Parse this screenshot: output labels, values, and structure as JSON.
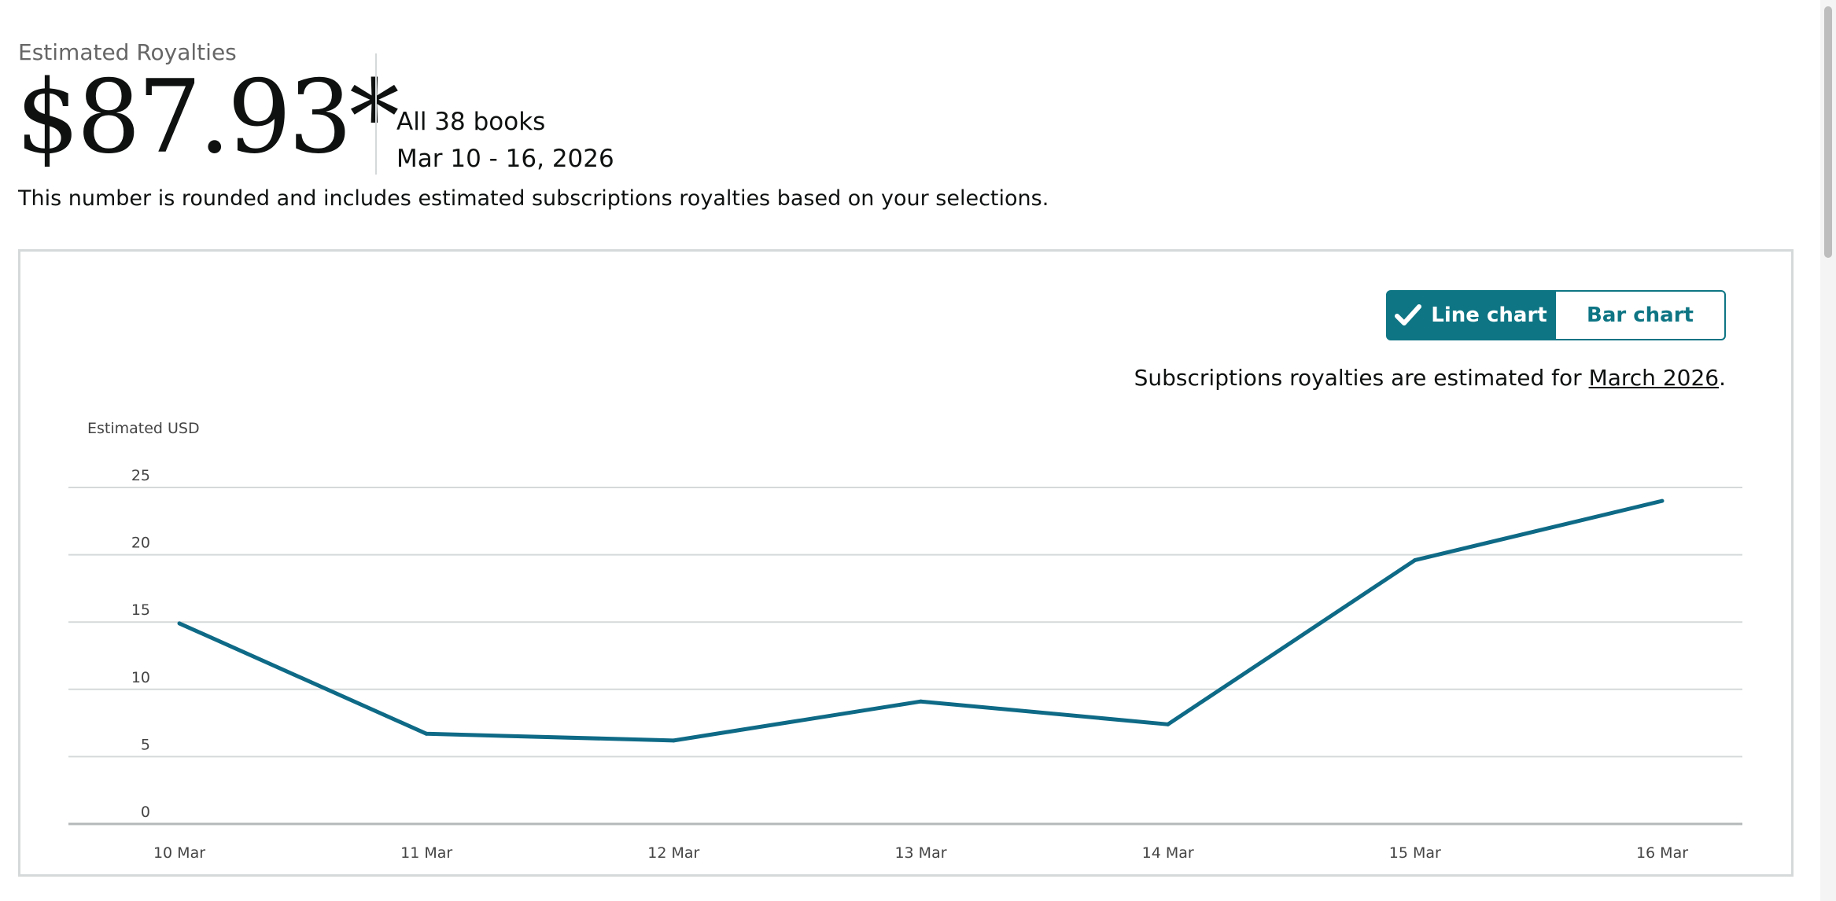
{
  "summary": {
    "label": "Estimated Royalties",
    "amount": "$87.93*",
    "books": "All 38 books",
    "date_range": "Mar 10 - 16, 2026",
    "note": "This number is rounded and includes estimated subscriptions royalties based on your selections."
  },
  "toggle": {
    "line_label": "Line chart",
    "bar_label": "Bar chart",
    "selected": "line"
  },
  "subscriptions_note": {
    "prefix": "Subscriptions royalties are estimated for ",
    "link": "March 2026",
    "suffix": "."
  },
  "colors": {
    "accent": "#0e7584",
    "line": "#0e6a86",
    "grid": "#d5d9d9"
  },
  "chart_data": {
    "type": "line",
    "ylabel": "Estimated USD",
    "categories": [
      "10 Mar",
      "11 Mar",
      "12 Mar",
      "13 Mar",
      "14 Mar",
      "15 Mar",
      "16 Mar"
    ],
    "series": [
      {
        "values": [
          14.9,
          6.7,
          6.2,
          9.1,
          7.4,
          19.6,
          24.0
        ]
      }
    ],
    "yticks": [
      "0",
      "5",
      "10",
      "15",
      "20",
      "25"
    ],
    "ylim": [
      0,
      25
    ],
    "grid": true
  }
}
